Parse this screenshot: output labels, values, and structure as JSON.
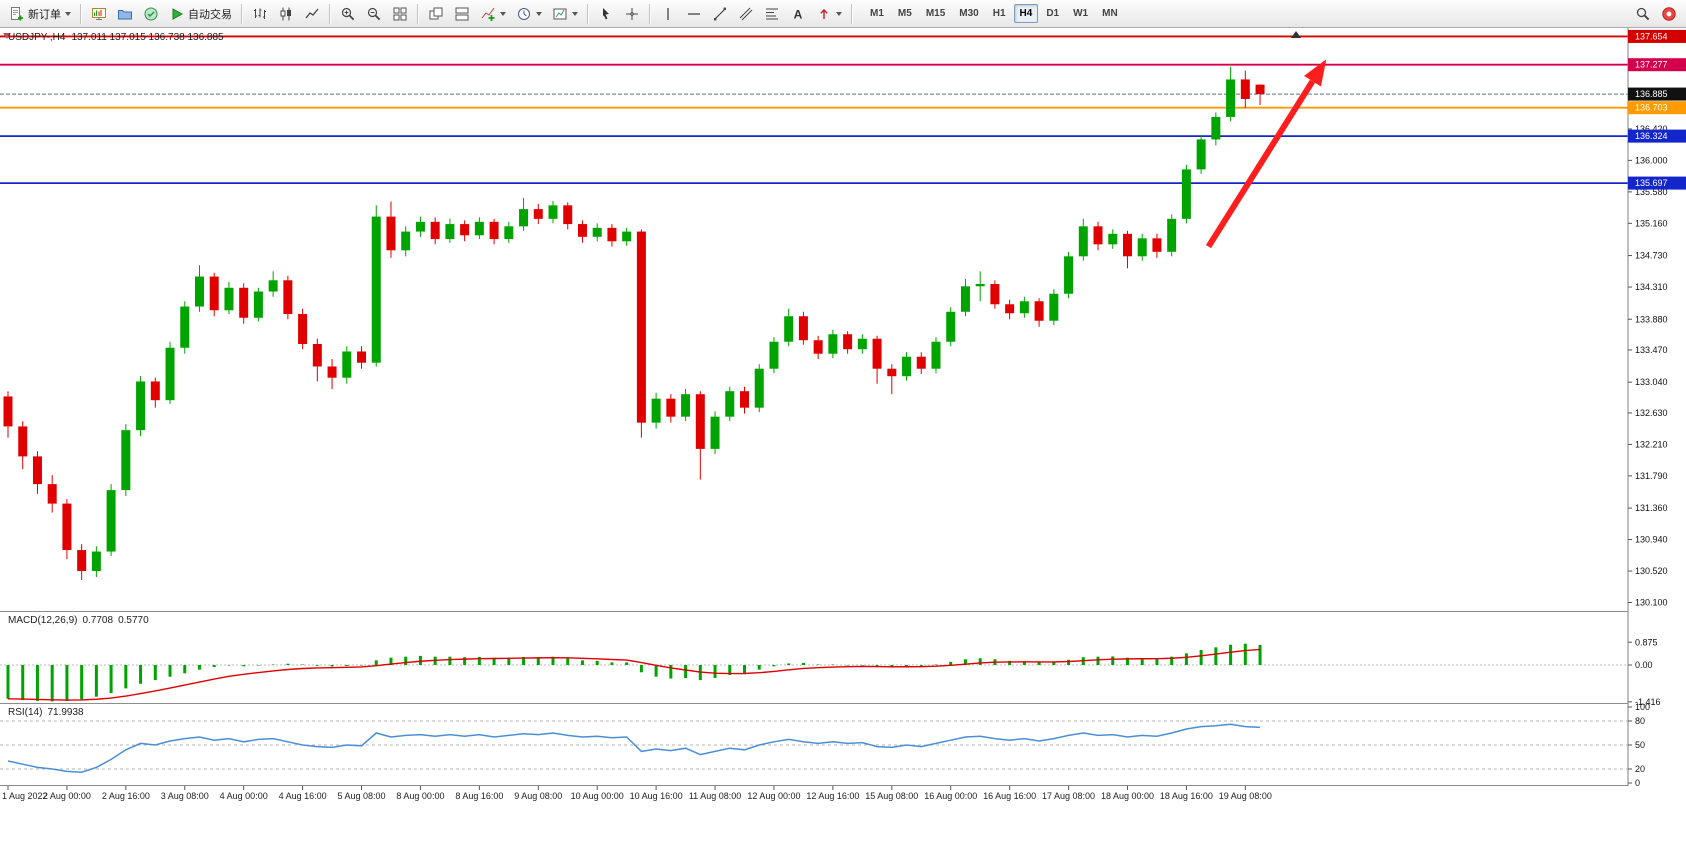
{
  "toolbar": {
    "new_order_label": "新订单",
    "auto_trading_label": "自动交易",
    "timeframes": [
      "M1",
      "M5",
      "M15",
      "M30",
      "H1",
      "H4",
      "D1",
      "W1",
      "MN"
    ],
    "active_timeframe": "H4"
  },
  "chart": {
    "symbol_period": "USDJPY-,H4",
    "ohlc_text": "137.011 137.015 136.738 136.885"
  },
  "chart_data": {
    "type": "candlestick",
    "symbol": "USDJPY-",
    "timeframe": "H4",
    "colors": {
      "bull": "#00a400",
      "bear": "#e00000",
      "background": "#ffffff",
      "macd_histogram": "#00a400",
      "macd_signal": "#e00000",
      "rsi_line": "#4a8fd4",
      "annotation_arrow": "#ff1e1e"
    },
    "price_axis": {
      "ticks": [
        "136.420",
        "136.000",
        "135.580",
        "135.160",
        "134.730",
        "134.310",
        "133.880",
        "133.470",
        "133.040",
        "132.630",
        "132.210",
        "131.790",
        "131.360",
        "130.940",
        "130.520",
        "130.100"
      ],
      "boxes": [
        {
          "value": "137.654",
          "color": "#d40000"
        },
        {
          "value": "137.277",
          "color": "#d4004c"
        },
        {
          "value": "136.885",
          "color": "#111111"
        },
        {
          "value": "136.703",
          "color": "#ff9a00"
        },
        {
          "value": "136.324",
          "color": "#1326cc"
        },
        {
          "value": "135.697",
          "color": "#1326cc"
        }
      ]
    },
    "hlines": [
      {
        "price": 137.654,
        "color": "#d40000"
      },
      {
        "price": 137.277,
        "color": "#d4004c"
      },
      {
        "price": 136.703,
        "color": "#ff9a00"
      },
      {
        "price": 136.324,
        "color": "#1326cc"
      },
      {
        "price": 135.697,
        "color": "#1326cc"
      }
    ],
    "bid_line": {
      "price": 136.885,
      "color": "#607080"
    },
    "time_labels": [
      "1 Aug 2022",
      "2 Aug 00:00",
      "2 Aug 16:00",
      "3 Aug 08:00",
      "4 Aug 00:00",
      "4 Aug 16:00",
      "5 Aug 08:00",
      "8 Aug 00:00",
      "8 Aug 16:00",
      "9 Aug 08:00",
      "10 Aug 00:00",
      "10 Aug 16:00",
      "11 Aug 08:00",
      "12 Aug 00:00",
      "12 Aug 16:00",
      "15 Aug 08:00",
      "16 Aug 00:00",
      "16 Aug 16:00",
      "17 Aug 08:00",
      "18 Aug 00:00",
      "18 Aug 16:00",
      "19 Aug 08:00"
    ],
    "label_every_n_candles": 4,
    "candles": [
      [
        132.85,
        132.92,
        132.3,
        132.45
      ],
      [
        132.45,
        132.52,
        131.88,
        132.05
      ],
      [
        132.05,
        132.12,
        131.55,
        131.68
      ],
      [
        131.68,
        131.8,
        131.3,
        131.42
      ],
      [
        131.42,
        131.48,
        130.68,
        130.8
      ],
      [
        130.8,
        130.88,
        130.4,
        130.52
      ],
      [
        130.52,
        130.85,
        130.44,
        130.78
      ],
      [
        130.78,
        131.68,
        130.72,
        131.6
      ],
      [
        131.6,
        132.48,
        131.52,
        132.4
      ],
      [
        132.4,
        133.12,
        132.32,
        133.05
      ],
      [
        133.05,
        133.1,
        132.7,
        132.8
      ],
      [
        132.8,
        133.58,
        132.75,
        133.5
      ],
      [
        133.5,
        134.12,
        133.42,
        134.05
      ],
      [
        134.05,
        134.6,
        133.98,
        134.45
      ],
      [
        134.45,
        134.5,
        133.92,
        134.0
      ],
      [
        134.0,
        134.38,
        133.95,
        134.3
      ],
      [
        134.3,
        134.36,
        133.82,
        133.9
      ],
      [
        133.9,
        134.3,
        133.85,
        134.25
      ],
      [
        134.25,
        134.52,
        134.18,
        134.4
      ],
      [
        134.4,
        134.46,
        133.88,
        133.95
      ],
      [
        133.95,
        134.02,
        133.48,
        133.55
      ],
      [
        133.55,
        133.62,
        133.05,
        133.25
      ],
      [
        133.25,
        133.35,
        132.95,
        133.1
      ],
      [
        133.1,
        133.52,
        133.02,
        133.45
      ],
      [
        133.45,
        133.52,
        133.22,
        133.3
      ],
      [
        133.3,
        135.4,
        133.25,
        135.25
      ],
      [
        135.25,
        135.45,
        134.7,
        134.8
      ],
      [
        134.8,
        135.12,
        134.72,
        135.05
      ],
      [
        135.05,
        135.25,
        134.98,
        135.18
      ],
      [
        135.18,
        135.24,
        134.88,
        134.95
      ],
      [
        134.95,
        135.22,
        134.9,
        135.15
      ],
      [
        135.15,
        135.2,
        134.92,
        135.0
      ],
      [
        135.0,
        135.24,
        134.95,
        135.18
      ],
      [
        135.18,
        135.22,
        134.88,
        134.95
      ],
      [
        134.95,
        135.18,
        134.9,
        135.12
      ],
      [
        135.12,
        135.5,
        135.06,
        135.35
      ],
      [
        135.35,
        135.42,
        135.15,
        135.22
      ],
      [
        135.22,
        135.46,
        135.16,
        135.4
      ],
      [
        135.4,
        135.44,
        135.08,
        135.15
      ],
      [
        135.15,
        135.2,
        134.9,
        134.98
      ],
      [
        134.98,
        135.16,
        134.92,
        135.1
      ],
      [
        135.1,
        135.15,
        134.85,
        134.92
      ],
      [
        134.92,
        135.1,
        134.86,
        135.05
      ],
      [
        135.05,
        135.08,
        132.3,
        132.5
      ],
      [
        132.5,
        132.9,
        132.42,
        132.82
      ],
      [
        132.82,
        132.88,
        132.5,
        132.58
      ],
      [
        132.58,
        132.95,
        132.52,
        132.88
      ],
      [
        132.88,
        132.92,
        131.74,
        132.15
      ],
      [
        132.15,
        132.65,
        132.08,
        132.58
      ],
      [
        132.58,
        132.98,
        132.52,
        132.92
      ],
      [
        132.92,
        132.98,
        132.62,
        132.7
      ],
      [
        132.7,
        133.28,
        132.64,
        133.22
      ],
      [
        133.22,
        133.64,
        133.16,
        133.58
      ],
      [
        133.58,
        134.02,
        133.52,
        133.92
      ],
      [
        133.92,
        133.98,
        133.54,
        133.6
      ],
      [
        133.6,
        133.66,
        133.35,
        133.42
      ],
      [
        133.42,
        133.74,
        133.36,
        133.68
      ],
      [
        133.68,
        133.72,
        133.42,
        133.48
      ],
      [
        133.48,
        133.68,
        133.42,
        133.62
      ],
      [
        133.62,
        133.66,
        133.02,
        133.22
      ],
      [
        133.22,
        133.28,
        132.88,
        133.12
      ],
      [
        133.12,
        133.44,
        133.06,
        133.38
      ],
      [
        133.38,
        133.44,
        133.15,
        133.22
      ],
      [
        133.22,
        133.64,
        133.16,
        133.58
      ],
      [
        133.58,
        134.04,
        133.52,
        133.98
      ],
      [
        133.98,
        134.42,
        133.92,
        134.32
      ],
      [
        134.32,
        134.52,
        134.12,
        134.35
      ],
      [
        134.35,
        134.4,
        134.02,
        134.08
      ],
      [
        134.08,
        134.14,
        133.88,
        133.96
      ],
      [
        133.96,
        134.18,
        133.9,
        134.12
      ],
      [
        134.12,
        134.16,
        133.78,
        133.86
      ],
      [
        133.86,
        134.28,
        133.8,
        134.22
      ],
      [
        134.22,
        134.78,
        134.16,
        134.72
      ],
      [
        134.72,
        135.22,
        134.66,
        135.12
      ],
      [
        135.12,
        135.18,
        134.8,
        134.88
      ],
      [
        134.88,
        135.08,
        134.82,
        135.02
      ],
      [
        135.02,
        135.06,
        134.56,
        134.72
      ],
      [
        134.72,
        135.02,
        134.66,
        134.96
      ],
      [
        134.96,
        135.02,
        134.7,
        134.78
      ],
      [
        134.78,
        135.28,
        134.72,
        135.22
      ],
      [
        135.22,
        135.94,
        135.16,
        135.88
      ],
      [
        135.88,
        136.34,
        135.82,
        136.28
      ],
      [
        136.28,
        136.64,
        136.2,
        136.58
      ],
      [
        136.58,
        137.25,
        136.52,
        137.08
      ],
      [
        137.08,
        137.2,
        136.7,
        136.82
      ],
      [
        137.011,
        137.015,
        136.738,
        136.885
      ]
    ],
    "indicators": {
      "macd": {
        "label": "MACD(12,26,9)",
        "value_main": "0.7708",
        "value_signal": "0.5770",
        "scale": [
          "0.875",
          "0.00",
          "-1.416"
        ],
        "histogram": [
          -1.3,
          -1.35,
          -1.38,
          -1.4,
          -1.38,
          -1.32,
          -1.22,
          -1.08,
          -0.9,
          -0.72,
          -0.58,
          -0.45,
          -0.32,
          -0.18,
          -0.08,
          -0.02,
          -0.05,
          -0.02,
          0.02,
          0.05,
          0.02,
          -0.03,
          -0.06,
          -0.04,
          -0.02,
          0.18,
          0.28,
          0.32,
          0.35,
          0.32,
          0.32,
          0.3,
          0.31,
          0.28,
          0.28,
          0.31,
          0.3,
          0.32,
          0.26,
          0.18,
          0.16,
          0.1,
          0.1,
          -0.28,
          -0.45,
          -0.52,
          -0.5,
          -0.58,
          -0.5,
          -0.38,
          -0.32,
          -0.18,
          -0.05,
          0.06,
          0.08,
          0.02,
          0.02,
          -0.02,
          -0.02,
          -0.08,
          -0.1,
          -0.06,
          -0.05,
          0.02,
          0.12,
          0.22,
          0.26,
          0.22,
          0.16,
          0.14,
          0.1,
          0.12,
          0.2,
          0.3,
          0.32,
          0.33,
          0.28,
          0.26,
          0.26,
          0.32,
          0.45,
          0.58,
          0.68,
          0.78,
          0.82,
          0.77
        ]
      },
      "rsi": {
        "label": "RSI(14)",
        "value_text": "71.9938",
        "scale": [
          "100",
          "80",
          "50",
          "20",
          "0"
        ],
        "levels": [
          80,
          50,
          20
        ],
        "values": [
          30,
          26,
          22,
          20,
          17,
          16,
          22,
          32,
          44,
          52,
          50,
          55,
          58,
          60,
          56,
          58,
          54,
          57,
          58,
          54,
          50,
          48,
          47,
          50,
          49,
          65,
          60,
          62,
          63,
          61,
          63,
          61,
          63,
          60,
          62,
          64,
          63,
          65,
          62,
          60,
          61,
          59,
          60,
          42,
          45,
          43,
          46,
          38,
          42,
          46,
          44,
          50,
          54,
          57,
          54,
          52,
          54,
          52,
          53,
          48,
          47,
          50,
          48,
          52,
          56,
          60,
          61,
          58,
          56,
          58,
          55,
          58,
          62,
          65,
          62,
          63,
          60,
          62,
          61,
          65,
          70,
          73,
          74,
          76,
          73,
          72
        ]
      }
    },
    "annotations": [
      {
        "type": "arrow",
        "color": "#ff1e1e",
        "from_index": 81.5,
        "from_price": 134.85,
        "to_index": 89.5,
        "to_price": 137.35
      }
    ]
  }
}
